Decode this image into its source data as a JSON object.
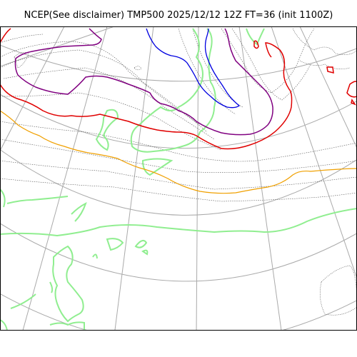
{
  "title": "NCEP(See disclaimer) TMP500 2025/12/12 12Z FT=36 (init 1100Z)",
  "colors": {
    "graticule": "#aaaaaa",
    "coastline": "#555555",
    "contour_thin": "#555555",
    "contour_red": "#e00000",
    "contour_orange": "#f0a000",
    "contour_purple": "#800080",
    "contour_blue": "#0000e0",
    "contour_green": "#90ee90"
  }
}
